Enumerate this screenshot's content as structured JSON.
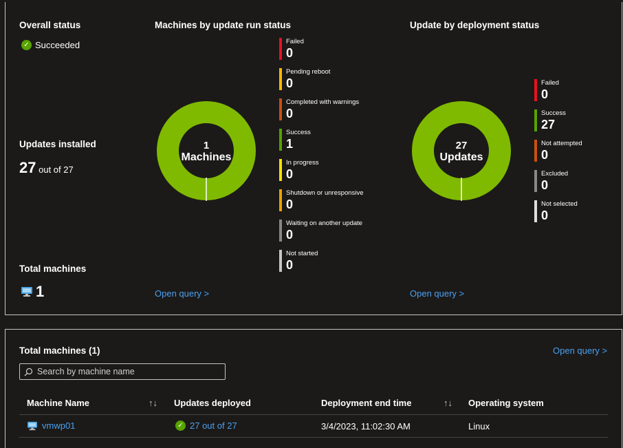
{
  "overall_status": {
    "heading": "Overall status",
    "value": "Succeeded"
  },
  "updates_installed": {
    "heading": "Updates installed",
    "count": "27",
    "suffix": "out of 27"
  },
  "total_machines": {
    "heading": "Total machines",
    "count": "1"
  },
  "machines_chart": {
    "heading": "Machines by update run status",
    "center_number": "1",
    "center_unit": "Machines",
    "legend": [
      {
        "label": "Failed",
        "value": "0",
        "color": "#e81123"
      },
      {
        "label": "Pending reboot",
        "value": "0",
        "color": "#ffb900"
      },
      {
        "label": "Completed with warnings",
        "value": "0",
        "color": "#ca5010"
      },
      {
        "label": "Success",
        "value": "1",
        "color": "#57a300"
      },
      {
        "label": "In progress",
        "value": "0",
        "color": "#fce100"
      },
      {
        "label": "Shutdown or unresponsive",
        "value": "0",
        "color": "#eaa300"
      },
      {
        "label": "Waiting on another update",
        "value": "0",
        "color": "#8a8886"
      },
      {
        "label": "Not started",
        "value": "0",
        "color": "#c8c6c4"
      }
    ],
    "open_query": "Open query >"
  },
  "deployment_chart": {
    "heading": "Update by deployment status",
    "center_number": "27",
    "center_unit": "Updates",
    "legend": [
      {
        "label": "Failed",
        "value": "0",
        "color": "#e81123"
      },
      {
        "label": "Success",
        "value": "27",
        "color": "#57a300"
      },
      {
        "label": "Not attempted",
        "value": "0",
        "color": "#ca5010"
      },
      {
        "label": "Excluded",
        "value": "0",
        "color": "#8a8886"
      },
      {
        "label": "Not selected",
        "value": "0",
        "color": "#e1dfdd"
      }
    ],
    "open_query": "Open query >"
  },
  "donut_color": "#7fba00",
  "table_section": {
    "heading": "Total machines (1)",
    "open_query": "Open query >",
    "search_placeholder": "Search by machine name",
    "columns": [
      "Machine Name",
      "Updates deployed",
      "Deployment end time",
      "Operating system"
    ],
    "rows": [
      {
        "machine": "vmwp01",
        "updates": "27 out of 27",
        "end_time": "3/4/2023, 11:02:30 AM",
        "os": "Linux"
      }
    ]
  }
}
